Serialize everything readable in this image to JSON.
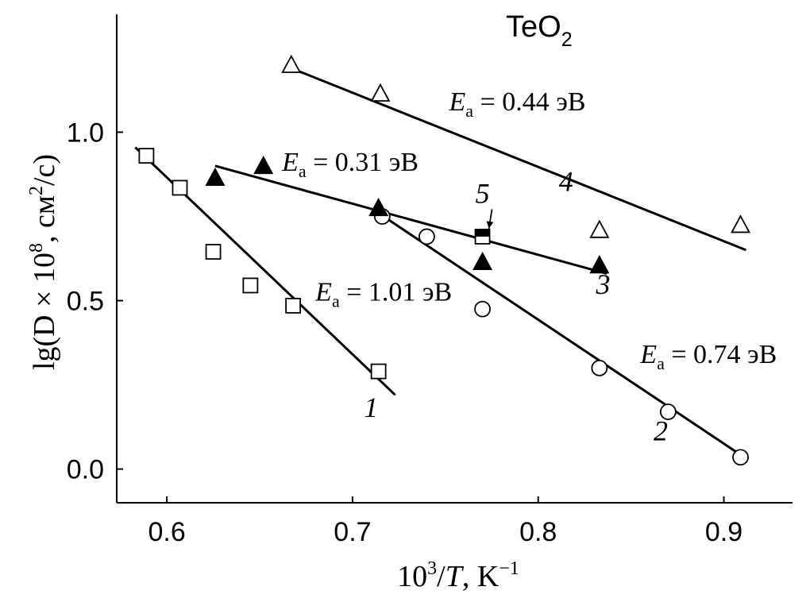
{
  "chart_data": {
    "type": "scatter",
    "title": "TeO",
    "title_subscript": "2",
    "xlabel": {
      "base": "10",
      "base_sup": "3",
      "slash": "/",
      "var": "T",
      "rest": ", K",
      "rest_sup": "−1"
    },
    "ylabel": {
      "pre": "lg(D × 10",
      "sup1": "8",
      "mid": ", см",
      "sup2": "2",
      "post": "/с)"
    },
    "xlim": [
      0.573,
      0.937
    ],
    "ylim": [
      -0.1,
      1.35
    ],
    "xticks": [
      {
        "value": 0.6,
        "label": "0.6"
      },
      {
        "value": 0.7,
        "label": "0.7"
      },
      {
        "value": 0.8,
        "label": "0.8"
      },
      {
        "value": 0.9,
        "label": "0.9"
      }
    ],
    "yticks": [
      {
        "value": 0.0,
        "label": "0.0"
      },
      {
        "value": 0.5,
        "label": "0.5"
      },
      {
        "value": 1.0,
        "label": "1.0"
      }
    ],
    "series": [
      {
        "name": "1",
        "marker": "square-open",
        "points": [
          [
            0.589,
            0.93
          ],
          [
            0.607,
            0.835
          ],
          [
            0.625,
            0.645
          ],
          [
            0.645,
            0.545
          ],
          [
            0.668,
            0.485
          ],
          [
            0.714,
            0.29
          ]
        ],
        "fit": [
          [
            0.583,
            0.955
          ],
          [
            0.723,
            0.22
          ]
        ],
        "label": {
          "text": "1",
          "at": [
            0.71,
            0.155
          ]
        }
      },
      {
        "name": "2",
        "marker": "circle-open",
        "points": [
          [
            0.716,
            0.75
          ],
          [
            0.74,
            0.69
          ],
          [
            0.77,
            0.475
          ],
          [
            0.833,
            0.3
          ],
          [
            0.87,
            0.17
          ],
          [
            0.909,
            0.035
          ]
        ],
        "fit": [
          [
            0.714,
            0.76
          ],
          [
            0.911,
            0.035
          ]
        ],
        "label": {
          "text": "2",
          "at": [
            0.866,
            0.085
          ]
        }
      },
      {
        "name": "3",
        "marker": "triangle-filled",
        "points": [
          [
            0.626,
            0.865
          ],
          [
            0.714,
            0.775
          ],
          [
            0.77,
            0.615
          ],
          [
            0.833,
            0.605
          ]
        ],
        "fit": [
          [
            0.626,
            0.9
          ],
          [
            0.837,
            0.58
          ]
        ],
        "label": {
          "text": "3",
          "at": [
            0.835,
            0.52
          ]
        }
      },
      {
        "name": "4",
        "marker": "triangle-open",
        "points": [
          [
            0.667,
            1.2
          ],
          [
            0.715,
            1.115
          ],
          [
            0.833,
            0.71
          ],
          [
            0.909,
            0.725
          ]
        ],
        "fit": [
          [
            0.667,
            1.19
          ],
          [
            0.912,
            0.65
          ]
        ],
        "label": {
          "text": "4",
          "at": [
            0.815,
            0.825
          ]
        }
      },
      {
        "name": "5",
        "marker": "square-half",
        "points": [
          [
            0.77,
            0.69
          ]
        ],
        "fit": null,
        "label": {
          "text": "5",
          "at": [
            0.77,
            0.79
          ]
        }
      }
    ],
    "annotations": [
      {
        "sym": "E",
        "sub": "a",
        "rest": " = 0.44 эВ",
        "at": [
          0.752,
          1.065
        ]
      },
      {
        "sym": "E",
        "sub": "a",
        "rest": " = 0.31 эВ",
        "at": [
          0.662,
          0.885
        ]
      },
      {
        "sym": "E",
        "sub": "a",
        "rest": " = 1.01 эВ",
        "at": [
          0.68,
          0.5
        ]
      },
      {
        "sym": "E",
        "sub": "a",
        "rest": " = 0.74 эВ",
        "at": [
          0.855,
          0.315
        ]
      }
    ],
    "legend_marker": {
      "marker": "triangle-filled",
      "at": [
        0.652,
        0.9
      ]
    }
  }
}
